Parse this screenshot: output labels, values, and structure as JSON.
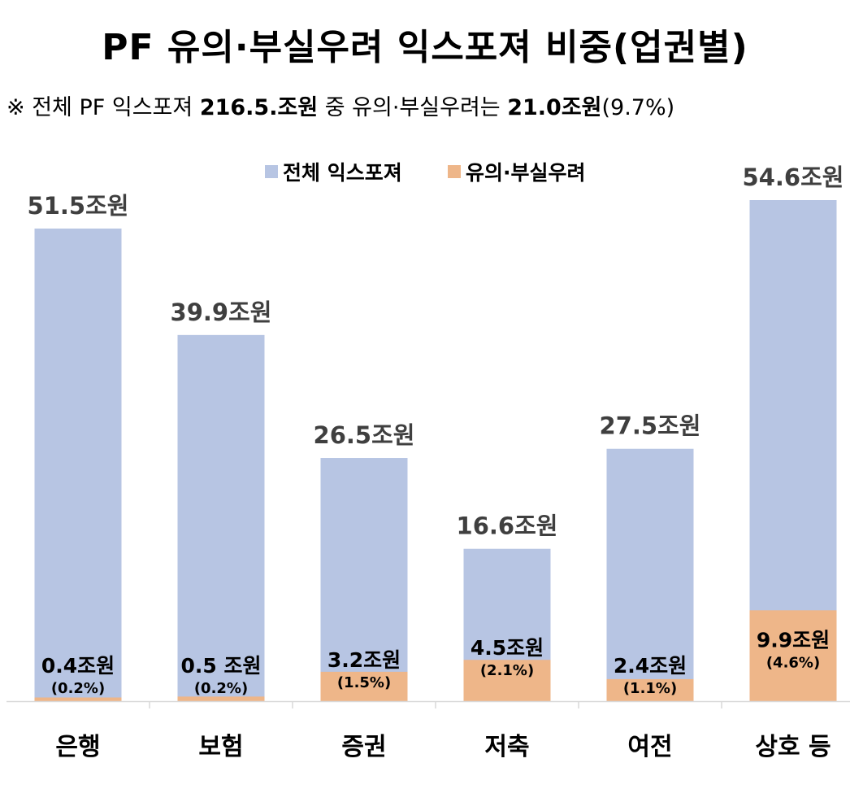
{
  "title": "PF 유의·부실우려 익스포져 비중(업권별)",
  "subtitle": {
    "prefix": "※ 전체 PF 익스포져 ",
    "total": "216.5.조원",
    "middle": " 중 유의·부실우려는 ",
    "risk": "21.0조원",
    "suffix": "(9.7%)"
  },
  "colors": {
    "total": "#b7c5e3",
    "risk": "#eeb689",
    "axis": "#d9d9d9"
  },
  "chart_data": {
    "type": "bar",
    "stacked": false,
    "legend_position": "top",
    "categories": [
      "은행",
      "보험",
      "증권",
      "저축",
      "여전",
      "상호 등"
    ],
    "series": [
      {
        "name": "전체 익스포져",
        "values": [
          51.5,
          39.9,
          26.5,
          16.6,
          27.5,
          54.6
        ]
      },
      {
        "name": "유의·부실우려",
        "values": [
          0.4,
          0.5,
          3.2,
          4.5,
          2.4,
          9.9
        ]
      }
    ],
    "total_labels": [
      "51.5조원",
      "39.9조원",
      "26.5조원",
      "16.6조원",
      "27.5조원",
      "54.6조원"
    ],
    "risk_labels": [
      "0.4조원",
      "0.5 조원",
      "3.2조원",
      "4.5조원",
      "2.4조원",
      "9.9조원"
    ],
    "risk_pct_labels": [
      "(0.2%)",
      "(0.2%)",
      "(1.5%)",
      "(2.1%)",
      "(1.1%)",
      "(4.6%)"
    ],
    "unit": "조원",
    "ylim": [
      0,
      54.6
    ],
    "grid": false
  }
}
